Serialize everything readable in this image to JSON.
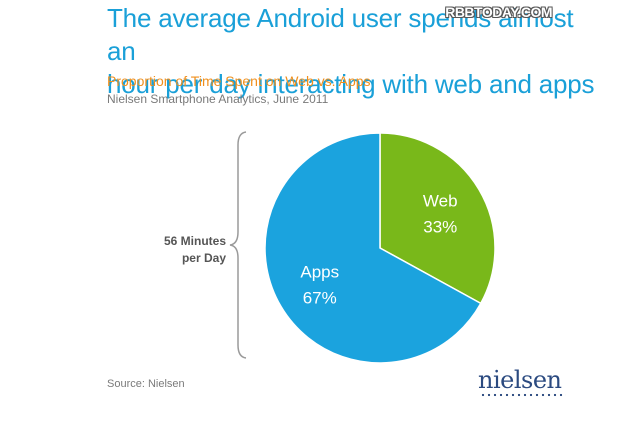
{
  "header": {
    "title_line1": "The average Android user spends almost an",
    "title_line2": "hour per day interacting with web and apps",
    "watermark": "RBBTODAY.COM"
  },
  "subtitle": "Proportion of Time Spent on Web vs. Apps",
  "source_line": "Nielsen Smartphone Analytics, June 2011",
  "side_label": {
    "line1": "56 Minutes",
    "line2": "per Day"
  },
  "footer": {
    "source": "Source: Nielsen",
    "logo": "nielsen"
  },
  "colors": {
    "title": "#1aa0d8",
    "subtitle": "#f0901e",
    "apps": "#1ba3de",
    "web": "#79b81a"
  },
  "chart_data": {
    "type": "pie",
    "title": "Proportion of Time Spent on Web vs. Apps",
    "series": [
      {
        "name": "Web",
        "value": 33,
        "label": "33%",
        "color": "#79b81a"
      },
      {
        "name": "Apps",
        "value": 67,
        "label": "67%",
        "color": "#1ba3de"
      }
    ],
    "start_angle_deg": 0,
    "direction": "clockwise"
  }
}
